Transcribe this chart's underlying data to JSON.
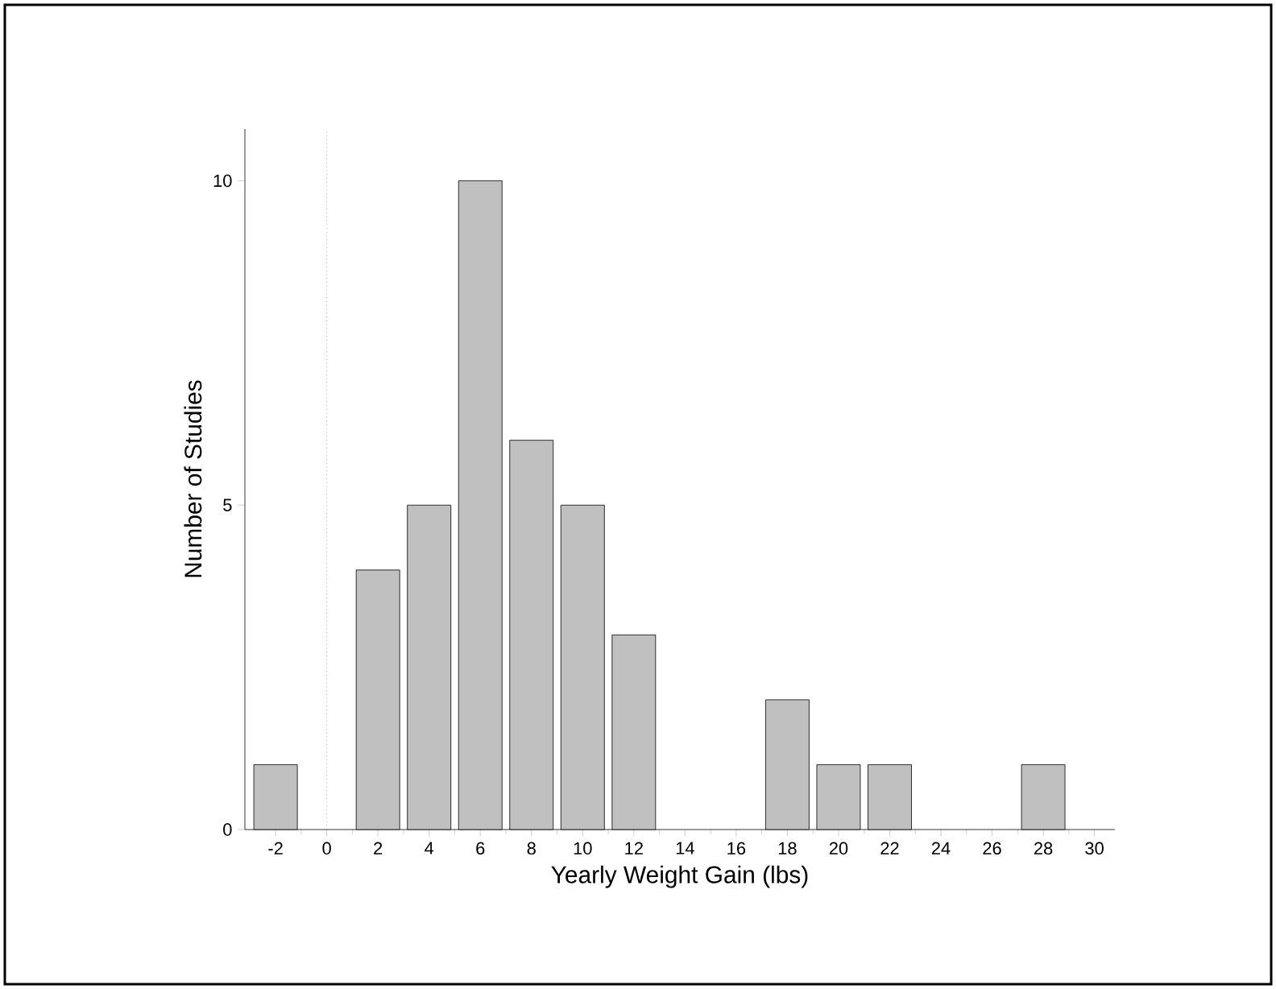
{
  "chart_data": {
    "type": "bar",
    "xlabel": "Yearly Weight Gain (lbs)",
    "ylabel": "Number of Studies",
    "x": [
      -2,
      2,
      4,
      6,
      8,
      10,
      12,
      18,
      20,
      22,
      28
    ],
    "values": [
      1,
      4,
      5,
      10,
      6,
      5,
      3,
      2,
      1,
      1,
      1
    ],
    "color": "#c0c0c0",
    "xlim": [
      -3.2,
      30.8
    ],
    "xticks": [
      -2,
      0,
      2,
      4,
      6,
      8,
      10,
      12,
      14,
      16,
      18,
      20,
      22,
      24,
      26,
      28,
      30
    ],
    "ylim": [
      0,
      10.8
    ],
    "yticks": [
      0,
      5,
      10
    ],
    "ref_lines": [
      {
        "axis": "x",
        "value": 0,
        "line_style": "dotted",
        "color": "#808080"
      }
    ],
    "grid": false
  }
}
